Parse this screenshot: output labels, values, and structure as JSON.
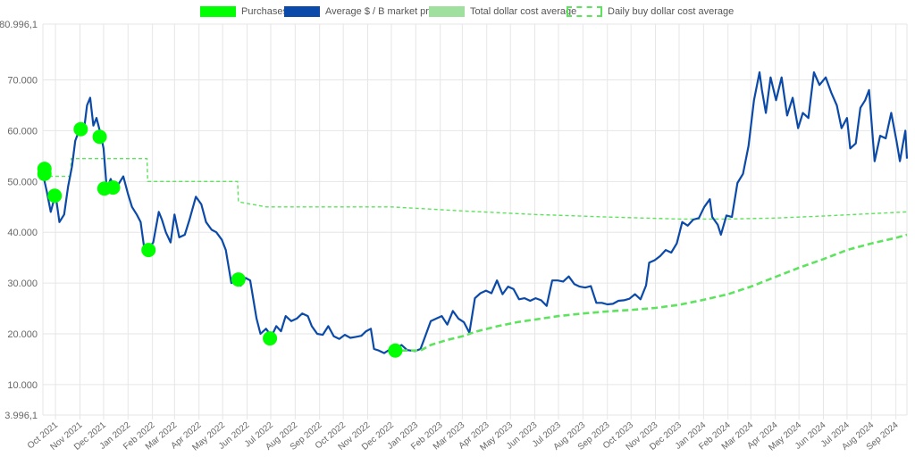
{
  "chart_data": {
    "type": "line",
    "title": "",
    "legend_position": "top",
    "grid": true,
    "legend": [
      {
        "label": "Purchases",
        "style": "filled-point",
        "color": "#00ff00"
      },
      {
        "label": "Average $ / B market price",
        "style": "line",
        "color": "#0b4aa8"
      },
      {
        "label": "Total dollar cost average",
        "style": "dashed-bold",
        "color": "#5ee35e"
      },
      {
        "label": "Daily buy dollar cost average",
        "style": "dashed-thin",
        "color": "#5ee35e"
      }
    ],
    "y_axis": {
      "min": 3996.1,
      "max": 80996.1,
      "tick_labels": [
        "80.996,1",
        "70.000",
        "60.000",
        "50.000",
        "40.000",
        "30.000",
        "20.000",
        "10.000",
        "3.996,1"
      ],
      "tick_values": [
        80996.1,
        70000,
        60000,
        50000,
        40000,
        30000,
        20000,
        10000,
        3996.1
      ]
    },
    "x_axis": {
      "range": [
        "2021-09-15",
        "2024-09-15"
      ],
      "tick_labels": [
        "Oct 2021",
        "Nov 2021",
        "Dec 2021",
        "Jan 2022",
        "Feb 2022",
        "Mar 2022",
        "Apr 2022",
        "May 2022",
        "Jun 2022",
        "Jul 2022",
        "Aug 2022",
        "Sep 2022",
        "Oct 2022",
        "Nov 2022",
        "Dec 2022",
        "Jan 2023",
        "Feb 2023",
        "Mar 2023",
        "Apr 2023",
        "May 2023",
        "Jun 2023",
        "Jul 2023",
        "Aug 2023",
        "Sep 2023",
        "Oct 2023",
        "Nov 2023",
        "Dec 2023",
        "Jan 2024",
        "Feb 2024",
        "Mar 2024",
        "Apr 2024",
        "May 2024",
        "Jun 2024",
        "Jul 2024",
        "Aug 2024",
        "Sep 2024"
      ]
    },
    "series": [
      {
        "name": "Average $ / B market price",
        "color": "#0b4aa8",
        "points": [
          [
            "2021-09-15",
            51500
          ],
          [
            "2021-09-20",
            48000
          ],
          [
            "2021-09-25",
            44000
          ],
          [
            "2021-10-01",
            47500
          ],
          [
            "2021-10-06",
            42000
          ],
          [
            "2021-10-12",
            43500
          ],
          [
            "2021-10-17",
            49000
          ],
          [
            "2021-10-22",
            53000
          ],
          [
            "2021-10-26",
            58000
          ],
          [
            "2021-11-01",
            60500
          ],
          [
            "2021-11-06",
            60000
          ],
          [
            "2021-11-10",
            65000
          ],
          [
            "2021-11-14",
            66500
          ],
          [
            "2021-11-18",
            61000
          ],
          [
            "2021-11-22",
            62500
          ],
          [
            "2021-11-27",
            59500
          ],
          [
            "2021-12-01",
            56500
          ],
          [
            "2021-12-05",
            48500
          ],
          [
            "2021-12-10",
            50500
          ],
          [
            "2021-12-15",
            48000
          ],
          [
            "2021-12-20",
            49500
          ],
          [
            "2021-12-26",
            51000
          ],
          [
            "2022-01-01",
            47500
          ],
          [
            "2022-01-06",
            45000
          ],
          [
            "2022-01-12",
            43500
          ],
          [
            "2022-01-17",
            42000
          ],
          [
            "2022-01-21",
            37500
          ],
          [
            "2022-01-26",
            36500
          ],
          [
            "2022-02-02",
            38000
          ],
          [
            "2022-02-09",
            44000
          ],
          [
            "2022-02-13",
            42500
          ],
          [
            "2022-02-18",
            40000
          ],
          [
            "2022-02-24",
            38000
          ],
          [
            "2022-03-01",
            43500
          ],
          [
            "2022-03-07",
            39000
          ],
          [
            "2022-03-14",
            39500
          ],
          [
            "2022-03-20",
            42500
          ],
          [
            "2022-03-28",
            47000
          ],
          [
            "2022-04-04",
            45500
          ],
          [
            "2022-04-10",
            42000
          ],
          [
            "2022-04-17",
            40500
          ],
          [
            "2022-04-23",
            40000
          ],
          [
            "2022-04-30",
            38500
          ],
          [
            "2022-05-05",
            36500
          ],
          [
            "2022-05-12",
            30000
          ],
          [
            "2022-05-18",
            30500
          ],
          [
            "2022-05-24",
            29500
          ],
          [
            "2022-05-30",
            31000
          ],
          [
            "2022-06-05",
            30500
          ],
          [
            "2022-06-13",
            23000
          ],
          [
            "2022-06-18",
            20000
          ],
          [
            "2022-06-25",
            21000
          ],
          [
            "2022-07-02",
            19500
          ],
          [
            "2022-07-08",
            21500
          ],
          [
            "2022-07-14",
            20500
          ],
          [
            "2022-07-20",
            23500
          ],
          [
            "2022-07-27",
            22500
          ],
          [
            "2022-08-03",
            23000
          ],
          [
            "2022-08-10",
            24000
          ],
          [
            "2022-08-17",
            23500
          ],
          [
            "2022-08-22",
            21500
          ],
          [
            "2022-08-29",
            20000
          ],
          [
            "2022-09-05",
            19800
          ],
          [
            "2022-09-12",
            21500
          ],
          [
            "2022-09-19",
            19500
          ],
          [
            "2022-09-26",
            19000
          ],
          [
            "2022-10-03",
            19800
          ],
          [
            "2022-10-10",
            19200
          ],
          [
            "2022-10-17",
            19400
          ],
          [
            "2022-10-24",
            19600
          ],
          [
            "2022-10-30",
            20500
          ],
          [
            "2022-11-05",
            21000
          ],
          [
            "2022-11-09",
            17000
          ],
          [
            "2022-11-15",
            16700
          ],
          [
            "2022-11-22",
            16200
          ],
          [
            "2022-11-30",
            17000
          ],
          [
            "2022-12-07",
            17000
          ],
          [
            "2022-12-14",
            17800
          ],
          [
            "2022-12-21",
            16800
          ],
          [
            "2022-12-31",
            16600
          ],
          [
            "2023-01-07",
            17000
          ],
          [
            "2023-01-13",
            19500
          ],
          [
            "2023-01-20",
            22500
          ],
          [
            "2023-01-27",
            23000
          ],
          [
            "2023-02-03",
            23500
          ],
          [
            "2023-02-10",
            21800
          ],
          [
            "2023-02-17",
            24500
          ],
          [
            "2023-02-24",
            23000
          ],
          [
            "2023-03-03",
            22300
          ],
          [
            "2023-03-10",
            20200
          ],
          [
            "2023-03-17",
            27000
          ],
          [
            "2023-03-24",
            28000
          ],
          [
            "2023-03-31",
            28500
          ],
          [
            "2023-04-07",
            28000
          ],
          [
            "2023-04-14",
            30500
          ],
          [
            "2023-04-21",
            27800
          ],
          [
            "2023-04-28",
            29300
          ],
          [
            "2023-05-05",
            28800
          ],
          [
            "2023-05-12",
            26800
          ],
          [
            "2023-05-19",
            27000
          ],
          [
            "2023-05-26",
            26500
          ],
          [
            "2023-06-02",
            27000
          ],
          [
            "2023-06-09",
            26600
          ],
          [
            "2023-06-16",
            25500
          ],
          [
            "2023-06-23",
            30500
          ],
          [
            "2023-06-30",
            30500
          ],
          [
            "2023-07-07",
            30300
          ],
          [
            "2023-07-14",
            31300
          ],
          [
            "2023-07-21",
            29800
          ],
          [
            "2023-07-28",
            29300
          ],
          [
            "2023-08-04",
            29100
          ],
          [
            "2023-08-11",
            29400
          ],
          [
            "2023-08-18",
            26100
          ],
          [
            "2023-08-25",
            26100
          ],
          [
            "2023-09-01",
            25800
          ],
          [
            "2023-09-08",
            25900
          ],
          [
            "2023-09-15",
            26500
          ],
          [
            "2023-09-22",
            26600
          ],
          [
            "2023-09-29",
            26900
          ],
          [
            "2023-10-06",
            27800
          ],
          [
            "2023-10-13",
            26800
          ],
          [
            "2023-10-20",
            29500
          ],
          [
            "2023-10-24",
            34000
          ],
          [
            "2023-10-31",
            34500
          ],
          [
            "2023-11-07",
            35300
          ],
          [
            "2023-11-14",
            36500
          ],
          [
            "2023-11-21",
            36000
          ],
          [
            "2023-11-28",
            37800
          ],
          [
            "2023-12-05",
            42000
          ],
          [
            "2023-12-12",
            41300
          ],
          [
            "2023-12-19",
            42500
          ],
          [
            "2023-12-26",
            42800
          ],
          [
            "2024-01-02",
            45000
          ],
          [
            "2024-01-09",
            46500
          ],
          [
            "2024-01-12",
            43000
          ],
          [
            "2024-01-19",
            41500
          ],
          [
            "2024-01-23",
            39500
          ],
          [
            "2024-01-30",
            43300
          ],
          [
            "2024-02-06",
            43000
          ],
          [
            "2024-02-13",
            49700
          ],
          [
            "2024-02-20",
            51500
          ],
          [
            "2024-02-27",
            57000
          ],
          [
            "2024-03-05",
            66000
          ],
          [
            "2024-03-12",
            71500
          ],
          [
            "2024-03-15",
            68000
          ],
          [
            "2024-03-20",
            63500
          ],
          [
            "2024-03-26",
            70500
          ],
          [
            "2024-04-02",
            66000
          ],
          [
            "2024-04-09",
            70500
          ],
          [
            "2024-04-16",
            63000
          ],
          [
            "2024-04-23",
            66500
          ],
          [
            "2024-04-30",
            60500
          ],
          [
            "2024-05-06",
            63500
          ],
          [
            "2024-05-13",
            62500
          ],
          [
            "2024-05-20",
            71500
          ],
          [
            "2024-05-27",
            69000
          ],
          [
            "2024-06-04",
            70500
          ],
          [
            "2024-06-11",
            67500
          ],
          [
            "2024-06-18",
            65000
          ],
          [
            "2024-06-24",
            60500
          ],
          [
            "2024-07-01",
            62500
          ],
          [
            "2024-07-05",
            56500
          ],
          [
            "2024-07-12",
            57500
          ],
          [
            "2024-07-18",
            64500
          ],
          [
            "2024-07-24",
            66000
          ],
          [
            "2024-07-29",
            68000
          ],
          [
            "2024-08-05",
            54000
          ],
          [
            "2024-08-12",
            59000
          ],
          [
            "2024-08-19",
            58500
          ],
          [
            "2024-08-26",
            63500
          ],
          [
            "2024-09-02",
            57800
          ],
          [
            "2024-09-06",
            54000
          ],
          [
            "2024-09-10",
            57500
          ],
          [
            "2024-09-13",
            60000
          ],
          [
            "2024-09-15",
            54500
          ]
        ]
      },
      {
        "name": "Total dollar cost average",
        "color": "#5ee35e",
        "points": [
          [
            "2022-12-01",
            16700
          ],
          [
            "2022-12-15",
            16700
          ],
          [
            "2023-01-07",
            16700
          ],
          [
            "2023-01-20",
            17800
          ],
          [
            "2023-02-10",
            18800
          ],
          [
            "2023-03-01",
            19500
          ],
          [
            "2023-03-20",
            20500
          ],
          [
            "2023-04-15",
            21500
          ],
          [
            "2023-05-10",
            22300
          ],
          [
            "2023-06-05",
            22900
          ],
          [
            "2023-07-01",
            23500
          ],
          [
            "2023-08-01",
            24000
          ],
          [
            "2023-09-01",
            24400
          ],
          [
            "2023-10-01",
            24700
          ],
          [
            "2023-11-01",
            25100
          ],
          [
            "2023-12-01",
            25700
          ],
          [
            "2024-01-01",
            26700
          ],
          [
            "2024-02-01",
            27800
          ],
          [
            "2024-03-01",
            29300
          ],
          [
            "2024-04-01",
            31200
          ],
          [
            "2024-05-01",
            33000
          ],
          [
            "2024-06-01",
            34700
          ],
          [
            "2024-07-01",
            36500
          ],
          [
            "2024-08-01",
            37800
          ],
          [
            "2024-09-01",
            38900
          ],
          [
            "2024-09-15",
            39500
          ]
        ]
      },
      {
        "name": "Daily buy dollar cost average",
        "color": "#5ee35e",
        "points": [
          [
            "2021-09-15",
            51000
          ],
          [
            "2021-10-20",
            51000
          ],
          [
            "2021-10-21",
            54500
          ],
          [
            "2022-01-25",
            54500
          ],
          [
            "2022-01-26",
            50000
          ],
          [
            "2022-05-20",
            50000
          ],
          [
            "2022-05-21",
            46000
          ],
          [
            "2022-06-25",
            45000
          ],
          [
            "2022-12-01",
            45000
          ],
          [
            "2023-03-01",
            44200
          ],
          [
            "2023-06-01",
            43500
          ],
          [
            "2023-09-01",
            43000
          ],
          [
            "2023-12-01",
            42600
          ],
          [
            "2024-02-01",
            42600
          ],
          [
            "2024-04-01",
            42800
          ],
          [
            "2024-06-01",
            43200
          ],
          [
            "2024-09-15",
            44000
          ]
        ]
      },
      {
        "name": "Purchases",
        "color": "#00ff00",
        "points": [
          [
            "2021-09-17",
            52500
          ],
          [
            "2021-09-17",
            51500
          ],
          [
            "2021-09-30",
            47200
          ],
          [
            "2021-11-02",
            60300
          ],
          [
            "2021-11-26",
            58800
          ],
          [
            "2021-12-02",
            48600
          ],
          [
            "2021-12-13",
            48800
          ],
          [
            "2022-01-27",
            36500
          ],
          [
            "2022-05-21",
            30700
          ],
          [
            "2022-06-30",
            19100
          ],
          [
            "2022-12-06",
            16700
          ]
        ]
      }
    ]
  }
}
